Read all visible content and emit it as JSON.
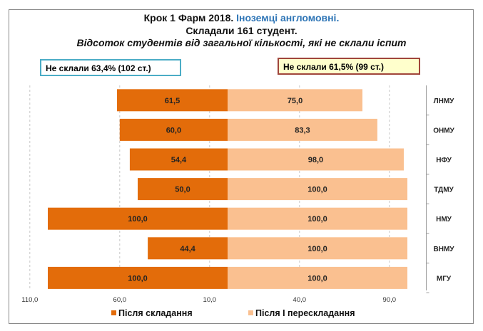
{
  "title": {
    "part1": "Крок 1 Фарм 2018.",
    "part2": "Іноземці англомовні.",
    "line2": "Складали 161 студент.",
    "line3": "Відсоток студентів від загальної кількості, які не склали іспит"
  },
  "annotations": {
    "left": "Не склали 63,4% (102 ст.)",
    "right": "Не склали  61,5% (99 ст.)"
  },
  "colors": {
    "series1": "#e36c0a",
    "series2": "#fac090",
    "left_box_border": "#4bacc6",
    "right_box_border": "#a0453b",
    "title_highlight": "#2e75b6"
  },
  "chart_data": {
    "type": "bar",
    "orientation": "horizontal-diverging",
    "categories": [
      "ЛНМУ",
      "ОНМУ",
      "НФУ",
      "ТДМУ",
      "НМУ",
      "ВНМУ",
      "МГУ"
    ],
    "series": [
      {
        "name": "Після складання",
        "values": [
          61.5,
          60.0,
          54.4,
          50.0,
          100.0,
          44.4,
          100.0
        ],
        "labels": [
          "61,5",
          "60,0",
          "54,4",
          "50,0",
          "100,0",
          "44,4",
          "100,0"
        ]
      },
      {
        "name": "Після І перескладання",
        "values": [
          75.0,
          83.3,
          98.0,
          100.0,
          100.0,
          100.0,
          100.0
        ],
        "labels": [
          "75,0",
          "83,3",
          "98,0",
          "100,0",
          "100,0",
          "100,0",
          "100,0"
        ]
      }
    ],
    "xtick_labels": [
      "110,0",
      "60,0",
      "10,0",
      "40,0",
      "90,0"
    ],
    "xlim": [
      -110,
      110
    ],
    "grid": "vertical dashed",
    "legend": "bottom"
  }
}
